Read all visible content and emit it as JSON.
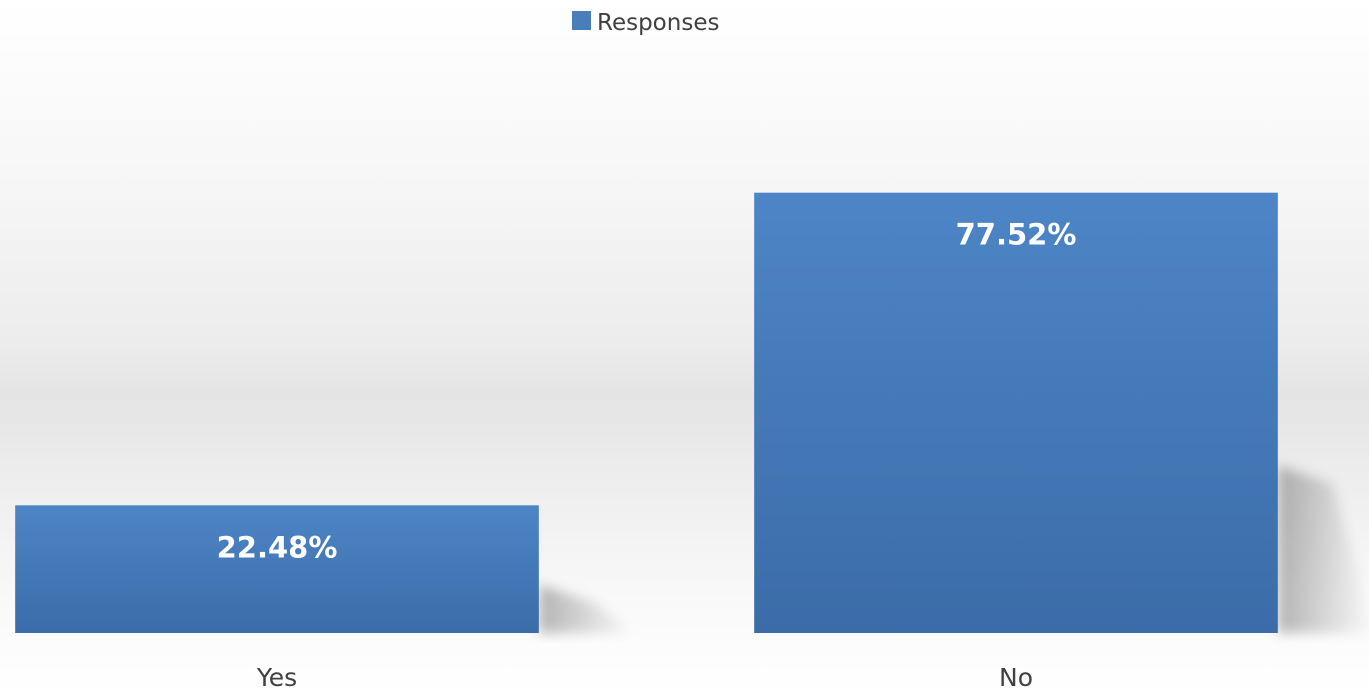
{
  "chart_data": {
    "type": "bar",
    "categories": [
      "Yes",
      "No"
    ],
    "series": [
      {
        "name": "Responses",
        "values": [
          22.48,
          77.52
        ],
        "labels": [
          "22.48%",
          "77.52%"
        ]
      }
    ],
    "ylim": [
      0,
      100
    ],
    "grid": false,
    "legend": "top-center",
    "colors": {
      "bar_top": "#4d85c6",
      "bar_bottom": "#3b6ca8",
      "legend_swatch": "#4a7ebb",
      "label_text": "#ffffff",
      "axis_text": "#404040"
    }
  }
}
